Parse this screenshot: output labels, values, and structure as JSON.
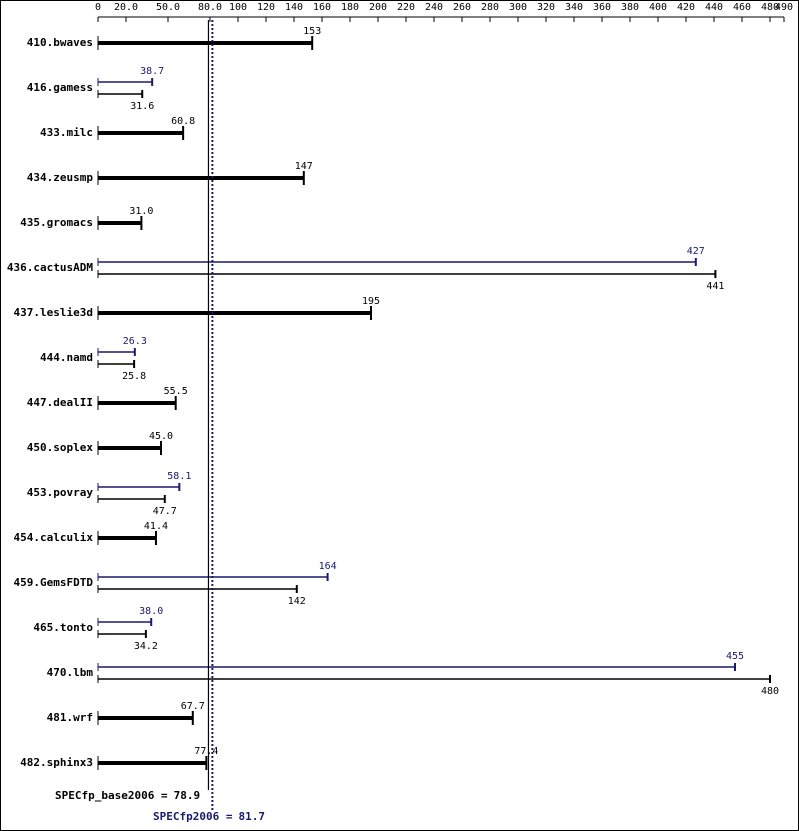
{
  "chart_data": {
    "type": "bar",
    "orientation": "horizontal",
    "categories": [
      "410.bwaves",
      "416.gamess",
      "433.milc",
      "434.zeusmp",
      "435.gromacs",
      "436.cactusADM",
      "437.leslie3d",
      "444.namd",
      "447.dealII",
      "450.soplex",
      "453.povray",
      "454.calculix",
      "459.GemsFDTD",
      "465.tonto",
      "470.lbm",
      "481.wrf",
      "482.sphinx3"
    ],
    "series": [
      {
        "color": "#000000",
        "values": [
          153,
          31.6,
          60.8,
          147,
          31,
          441,
          195,
          25.8,
          55.5,
          45,
          47.7,
          41.4,
          142,
          34.2,
          480,
          67.7,
          77.4
        ],
        "value_labels": [
          "153",
          "31.6",
          "60.8",
          "147",
          "31.0",
          "441",
          "195",
          "25.8",
          "55.5",
          "45.0",
          "47.7",
          "41.4",
          "142",
          "34.2",
          "480",
          "67.7",
          "77.4"
        ]
      },
      {
        "color": "#191970",
        "values": [
          null,
          38.7,
          null,
          null,
          null,
          427,
          null,
          26.3,
          null,
          null,
          58.1,
          null,
          164,
          38,
          455,
          null,
          null
        ],
        "value_labels": [
          null,
          "38.7",
          null,
          null,
          null,
          "427",
          null,
          "26.3",
          null,
          null,
          "58.1",
          null,
          "164",
          "38.0",
          "455",
          null,
          null
        ]
      }
    ],
    "xlim": [
      0,
      490
    ],
    "xticks": [
      0,
      {
        "value": 20,
        "label": "20.0"
      },
      {
        "value": 50,
        "label": "50.0"
      },
      {
        "value": 80,
        "label": "80.0"
      },
      100,
      120,
      140,
      160,
      180,
      200,
      220,
      240,
      260,
      280,
      300,
      320,
      340,
      360,
      380,
      400,
      420,
      440,
      460,
      480,
      490
    ],
    "references": [
      {
        "label": "SPECfp_base2006 =",
        "value": 78.9,
        "value_label": "78.9",
        "color": "#000000",
        "style": "solid"
      },
      {
        "label": "SPECfp2006 =",
        "value": 81.7,
        "value_label": "81.7",
        "color": "#191970",
        "style": "dotted"
      }
    ]
  }
}
